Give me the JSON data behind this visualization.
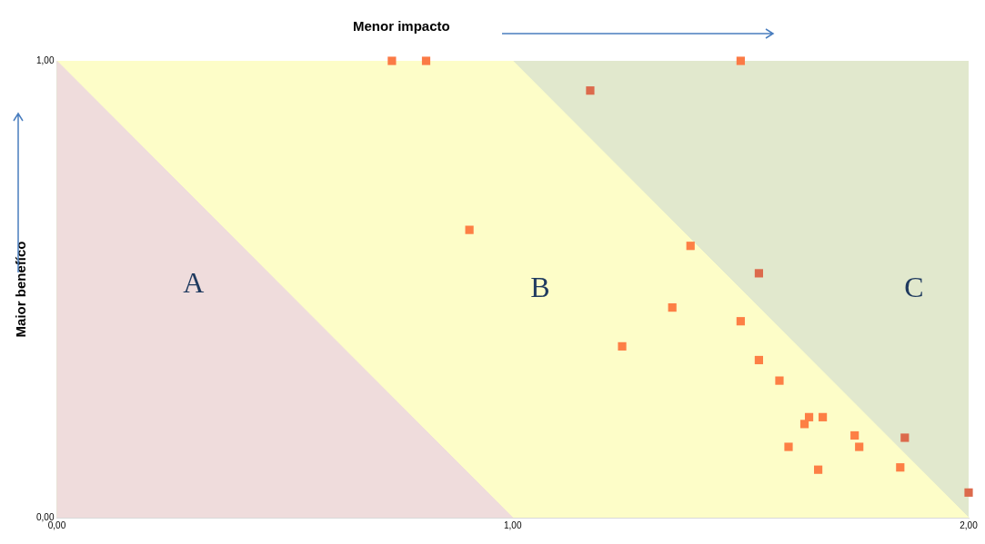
{
  "chart_data": {
    "type": "scatter",
    "xlabel": "Menor impacto",
    "ylabel": "Maior benefíco",
    "xlim": [
      0,
      2
    ],
    "ylim": [
      0,
      1
    ],
    "xticks": [
      {
        "value": 0,
        "label": "0,00"
      },
      {
        "value": 1,
        "label": "1,00"
      },
      {
        "value": 2,
        "label": "2,00"
      }
    ],
    "yticks": [
      {
        "value": 0,
        "label": "0,00"
      },
      {
        "value": 1,
        "label": "1,00"
      }
    ],
    "grid": false,
    "legend": false,
    "marker": "square",
    "annotations": [
      "A",
      "B",
      "C"
    ],
    "series": [
      {
        "type": "area",
        "marker": "none",
        "color": "#efdcdc",
        "x": [
          0,
          1
        ],
        "values": [
          1,
          0
        ]
      },
      {
        "type": "area",
        "marker": "none",
        "color": "#fdfdc8",
        "x": [
          0,
          1,
          2
        ],
        "values": [
          1,
          1,
          0
        ]
      },
      {
        "type": "area",
        "marker": "none",
        "color": "#e1e8cd",
        "x": [
          1,
          2
        ],
        "values": [
          1,
          1
        ]
      },
      {
        "x": [
          0.735,
          0.81,
          1.5,
          1.17,
          0.905,
          1.39,
          1.54,
          1.35,
          1.5,
          1.24,
          1.54,
          1.585,
          1.65,
          1.64,
          1.68,
          1.605,
          1.75,
          1.76,
          1.67,
          1.86,
          1.85,
          2.0
        ],
        "values": [
          1.0,
          1.0,
          1.0,
          0.935,
          0.63,
          0.595,
          0.535,
          0.46,
          0.43,
          0.375,
          0.345,
          0.3,
          0.22,
          0.205,
          0.22,
          0.155,
          0.18,
          0.155,
          0.105,
          0.175,
          0.11,
          0.055
        ],
        "colors": [
          "#fb7a45",
          "#fb7a45",
          "#fb7a45",
          "#dc6a4c",
          "#fd7f45",
          "#fd7f45",
          "#dc6a4c",
          "#fd7f45",
          "#fd7f45",
          "#fd7f45",
          "#fd7f45",
          "#fd7f45",
          "#fd7f45",
          "#fd7f45",
          "#fd7f45",
          "#fd7f45",
          "#fd7f45",
          "#fd7f45",
          "#fd7f45",
          "#dc6a4c",
          "#fd7f45",
          "#dc6a4c"
        ]
      }
    ]
  }
}
